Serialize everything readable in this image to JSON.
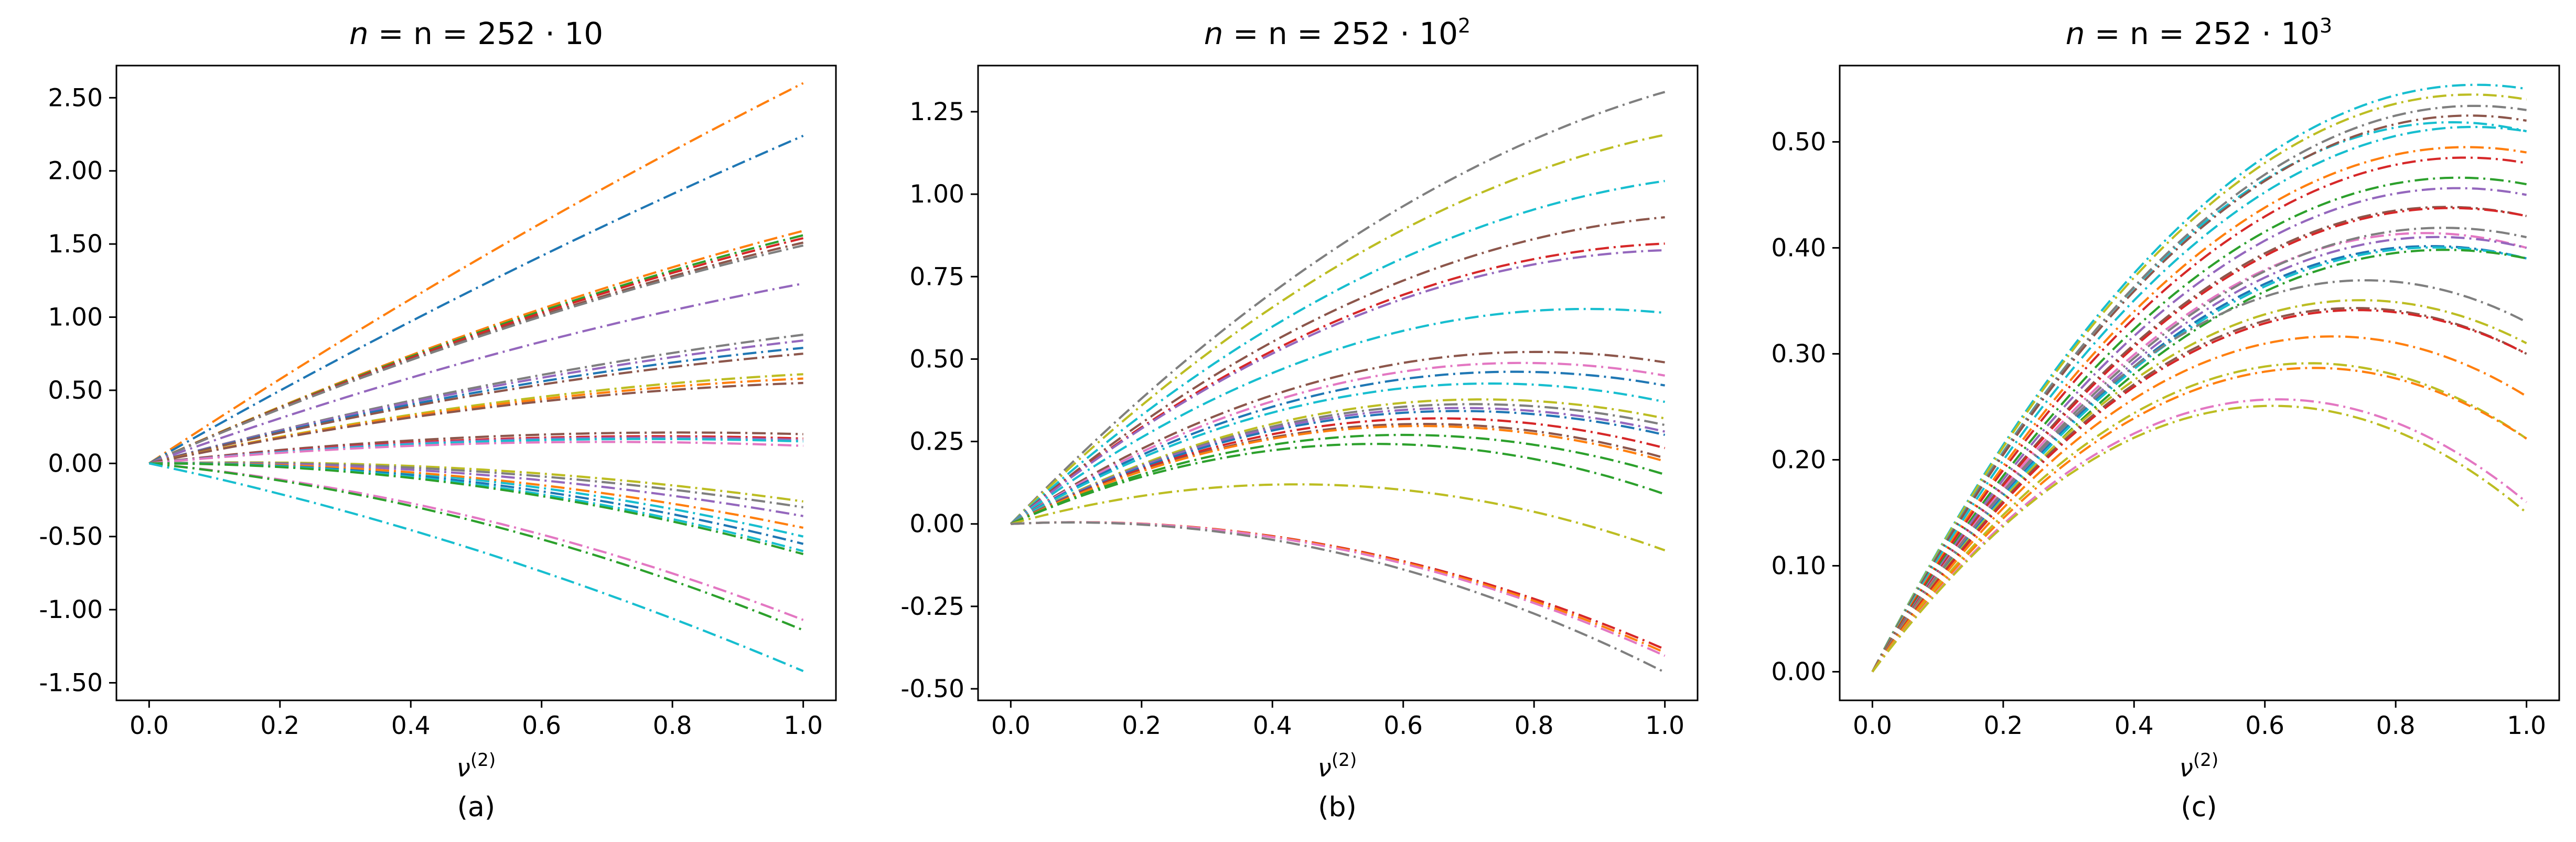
{
  "figure": {
    "panels": [
      {
        "title": "n = 252 · 10",
        "title_base": "n = 252 · 10",
        "title_exp": "",
        "xlabel": "ν",
        "xlabel_sup": "(2)",
        "panel_label": "(a)",
        "xticks": [
          "0.0",
          "0.2",
          "0.4",
          "0.6",
          "0.8",
          "1.0"
        ],
        "yticks": [
          "-1.50",
          "-1.00",
          "-0.50",
          "0.00",
          "0.50",
          "1.00",
          "1.50",
          "2.00",
          "2.50"
        ]
      },
      {
        "title": "n = 252 · 10^2",
        "title_base": "n = 252 · 10",
        "title_exp": "2",
        "xlabel": "ν",
        "xlabel_sup": "(2)",
        "panel_label": "(b)",
        "xticks": [
          "0.0",
          "0.2",
          "0.4",
          "0.6",
          "0.8",
          "1.0"
        ],
        "yticks": [
          "-0.50",
          "-0.25",
          "0.00",
          "0.25",
          "0.50",
          "0.75",
          "1.00",
          "1.25"
        ]
      },
      {
        "title": "n = 252 · 10^3",
        "title_base": "n = 252 · 10",
        "title_exp": "3",
        "xlabel": "ν",
        "xlabel_sup": "(2)",
        "panel_label": "(c)",
        "xticks": [
          "0.0",
          "0.2",
          "0.4",
          "0.6",
          "0.8",
          "1.0"
        ],
        "yticks": [
          "0.00",
          "0.10",
          "0.20",
          "0.30",
          "0.40",
          "0.50"
        ]
      }
    ],
    "palette": [
      "#1f77b4",
      "#ff7f0e",
      "#2ca02c",
      "#d62728",
      "#9467bd",
      "#8c564b",
      "#e377c2",
      "#7f7f7f",
      "#bcbd22",
      "#17becf"
    ],
    "line_style": "dash-dot"
  },
  "chart_data": [
    {
      "type": "line",
      "title": "n = 252 · 10",
      "xlabel": "ν(2)",
      "ylabel": "",
      "xlim": [
        -0.05,
        1.05
      ],
      "ylim": [
        -1.62,
        2.72
      ],
      "grid": false,
      "x_range": [
        0,
        1
      ],
      "curve_model": "y = a·x + b·x²",
      "series": [
        {
          "color": "#ff7f0e",
          "a": 2.95,
          "b": -0.35
        },
        {
          "color": "#1f77b4",
          "a": 2.55,
          "b": -0.31
        },
        {
          "color": "#ff7f0e",
          "a": 2.02,
          "b": -0.43
        },
        {
          "color": "#2ca02c",
          "a": 2.0,
          "b": -0.44
        },
        {
          "color": "#d62728",
          "a": 1.98,
          "b": -0.44
        },
        {
          "color": "#8c564b",
          "a": 1.96,
          "b": -0.45
        },
        {
          "color": "#7f7f7f",
          "a": 1.95,
          "b": -0.46
        },
        {
          "color": "#9467bd",
          "a": 1.62,
          "b": -0.39
        },
        {
          "color": "#7f7f7f",
          "a": 1.2,
          "b": -0.32
        },
        {
          "color": "#9467bd",
          "a": 1.18,
          "b": -0.34
        },
        {
          "color": "#1f77b4",
          "a": 1.15,
          "b": -0.36
        },
        {
          "color": "#8c564b",
          "a": 1.12,
          "b": -0.37
        },
        {
          "color": "#bcbd22",
          "a": 0.98,
          "b": -0.37
        },
        {
          "color": "#ff7f0e",
          "a": 0.96,
          "b": -0.38
        },
        {
          "color": "#8c564b",
          "a": 0.94,
          "b": -0.39
        },
        {
          "color": "#8c564b",
          "a": 0.52,
          "b": -0.32
        },
        {
          "color": "#d62728",
          "a": 0.48,
          "b": -0.31
        },
        {
          "color": "#9467bd",
          "a": 0.46,
          "b": -0.3
        },
        {
          "color": "#17becf",
          "a": 0.44,
          "b": -0.29
        },
        {
          "color": "#e377c2",
          "a": 0.42,
          "b": -0.3
        },
        {
          "color": "#bcbd22",
          "a": 0.1,
          "b": -0.36
        },
        {
          "color": "#7f7f7f",
          "a": 0.08,
          "b": -0.38
        },
        {
          "color": "#9467bd",
          "a": 0.06,
          "b": -0.42
        },
        {
          "color": "#17becf",
          "a": 0.05,
          "b": -0.55
        },
        {
          "color": "#ff7f0e",
          "a": 0.04,
          "b": -0.48
        },
        {
          "color": "#1f77b4",
          "a": 0.03,
          "b": -0.58
        },
        {
          "color": "#17becf",
          "a": 0.02,
          "b": -0.62
        },
        {
          "color": "#2ca02c",
          "a": 0.0,
          "b": -0.62
        },
        {
          "color": "#e377c2",
          "a": -0.42,
          "b": -0.65
        },
        {
          "color": "#2ca02c",
          "a": -0.45,
          "b": -0.69
        },
        {
          "color": "#17becf",
          "a": -0.95,
          "b": -0.47
        }
      ]
    },
    {
      "type": "line",
      "title": "n = 252 · 10^2",
      "xlabel": "ν(2)",
      "ylabel": "",
      "xlim": [
        -0.05,
        1.05
      ],
      "ylim": [
        -0.535,
        1.39
      ],
      "grid": false,
      "x_range": [
        0,
        1
      ],
      "curve_model": "y = a·x + b·x²",
      "series": [
        {
          "color": "#7f7f7f",
          "a": 2.05,
          "b": -0.74
        },
        {
          "color": "#bcbd22",
          "a": 1.95,
          "b": -0.77
        },
        {
          "color": "#17becf",
          "a": 1.8,
          "b": -0.76
        },
        {
          "color": "#8c564b",
          "a": 1.68,
          "b": -0.75
        },
        {
          "color": "#d62728",
          "a": 1.62,
          "b": -0.77
        },
        {
          "color": "#9467bd",
          "a": 1.6,
          "b": -0.77
        },
        {
          "color": "#17becf",
          "a": 1.48,
          "b": -0.84
        },
        {
          "color": "#8c564b",
          "a": 1.3,
          "b": -0.81
        },
        {
          "color": "#e377c2",
          "a": 1.25,
          "b": -0.8
        },
        {
          "color": "#1f77b4",
          "a": 1.2,
          "b": -0.78
        },
        {
          "color": "#17becf",
          "a": 1.16,
          "b": -0.79
        },
        {
          "color": "#bcbd22",
          "a": 1.05,
          "b": -0.73
        },
        {
          "color": "#7f7f7f",
          "a": 1.03,
          "b": -0.73
        },
        {
          "color": "#9467bd",
          "a": 1.02,
          "b": -0.74
        },
        {
          "color": "#1f77b4",
          "a": 1.0,
          "b": -0.73
        },
        {
          "color": "#d62728",
          "a": 0.98,
          "b": -0.75
        },
        {
          "color": "#8c564b",
          "a": 0.96,
          "b": -0.76
        },
        {
          "color": "#ff7f0e",
          "a": 0.95,
          "b": -0.76
        },
        {
          "color": "#2ca02c",
          "a": 0.9,
          "b": -0.75
        },
        {
          "color": "#2ca02c",
          "a": 0.87,
          "b": -0.78
        },
        {
          "color": "#bcbd22",
          "a": 0.55,
          "b": -0.63
        },
        {
          "color": "#d62728",
          "a": 0.1,
          "b": -0.48
        },
        {
          "color": "#ff7f0e",
          "a": 0.1,
          "b": -0.49
        },
        {
          "color": "#e377c2",
          "a": 0.1,
          "b": -0.5
        },
        {
          "color": "#7f7f7f",
          "a": 0.1,
          "b": -0.55
        }
      ]
    },
    {
      "type": "line",
      "title": "n = 252 · 10^3",
      "xlabel": "ν(2)",
      "ylabel": "",
      "xlim": [
        -0.05,
        1.05
      ],
      "ylim": [
        -0.027,
        0.572
      ],
      "grid": false,
      "x_range": [
        0,
        1
      ],
      "curve_model": "y = a·x + b·x²",
      "series": [
        {
          "color": "#17becf",
          "a": 1.2,
          "b": -0.65
        },
        {
          "color": "#bcbd22",
          "a": 1.19,
          "b": -0.65
        },
        {
          "color": "#17becf",
          "a": 1.17,
          "b": -0.66
        },
        {
          "color": "#7f7f7f",
          "a": 1.16,
          "b": -0.63
        },
        {
          "color": "#8c564b",
          "a": 1.15,
          "b": -0.63
        },
        {
          "color": "#17becf",
          "a": 1.12,
          "b": -0.61
        },
        {
          "color": "#ff7f0e",
          "a": 1.09,
          "b": -0.6
        },
        {
          "color": "#d62728",
          "a": 1.07,
          "b": -0.59
        },
        {
          "color": "#2ca02c",
          "a": 1.04,
          "b": -0.58
        },
        {
          "color": "#9467bd",
          "a": 1.02,
          "b": -0.57
        },
        {
          "color": "#8c564b",
          "a": 1.0,
          "b": -0.57
        },
        {
          "color": "#d62728",
          "a": 0.99,
          "b": -0.56
        },
        {
          "color": "#e377c2",
          "a": 0.98,
          "b": -0.58
        },
        {
          "color": "#7f7f7f",
          "a": 0.96,
          "b": -0.55
        },
        {
          "color": "#9467bd",
          "a": 0.95,
          "b": -0.55
        },
        {
          "color": "#1f77b4",
          "a": 0.94,
          "b": -0.55
        },
        {
          "color": "#17becf",
          "a": 0.93,
          "b": -0.54
        },
        {
          "color": "#2ca02c",
          "a": 0.91,
          "b": -0.52
        },
        {
          "color": "#7f7f7f",
          "a": 0.98,
          "b": -0.65
        },
        {
          "color": "#bcbd22",
          "a": 0.94,
          "b": -0.63
        },
        {
          "color": "#8c564b",
          "a": 0.93,
          "b": -0.63
        },
        {
          "color": "#d62728",
          "a": 0.92,
          "b": -0.62
        },
        {
          "color": "#ff7f0e",
          "a": 0.9,
          "b": -0.64
        },
        {
          "color": "#bcbd22",
          "a": 0.87,
          "b": -0.65
        },
        {
          "color": "#ff7f0e",
          "a": 0.85,
          "b": -0.63
        },
        {
          "color": "#e377c2",
          "a": 0.83,
          "b": -0.67
        },
        {
          "color": "#bcbd22",
          "a": 0.82,
          "b": -0.67
        }
      ]
    }
  ]
}
